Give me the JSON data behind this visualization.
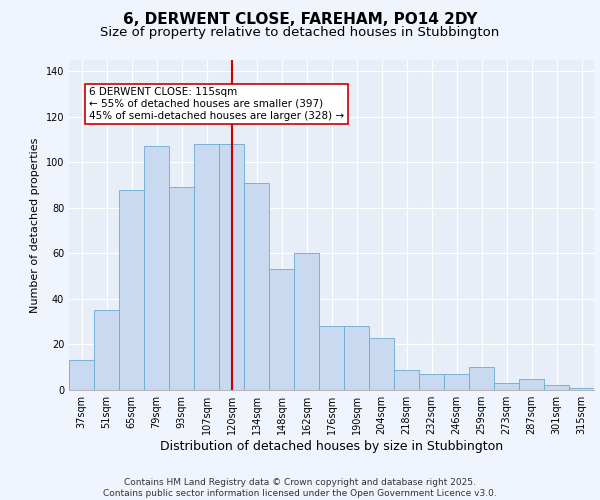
{
  "title": "6, DERWENT CLOSE, FAREHAM, PO14 2DY",
  "subtitle": "Size of property relative to detached houses in Stubbington",
  "xlabel": "Distribution of detached houses by size in Stubbington",
  "ylabel": "Number of detached properties",
  "categories": [
    "37sqm",
    "51sqm",
    "65sqm",
    "79sqm",
    "93sqm",
    "107sqm",
    "120sqm",
    "134sqm",
    "148sqm",
    "162sqm",
    "176sqm",
    "190sqm",
    "204sqm",
    "218sqm",
    "232sqm",
    "246sqm",
    "259sqm",
    "273sqm",
    "287sqm",
    "301sqm",
    "315sqm"
  ],
  "values": [
    13,
    35,
    88,
    107,
    89,
    108,
    108,
    91,
    53,
    60,
    28,
    28,
    23,
    9,
    7,
    7,
    10,
    3,
    5,
    2,
    1
  ],
  "bar_color": "#c8d9f0",
  "bar_edge_color": "#6aaad4",
  "vline_x_index": 6,
  "vline_color": "#cc0000",
  "annotation_text": "6 DERWENT CLOSE: 115sqm\n← 55% of detached houses are smaller (397)\n45% of semi-detached houses are larger (328) →",
  "annotation_box_color": "#ffffff",
  "annotation_box_edge": "#cc0000",
  "ylim": [
    0,
    145
  ],
  "yticks": [
    0,
    20,
    40,
    60,
    80,
    100,
    120,
    140
  ],
  "footer": "Contains HM Land Registry data © Crown copyright and database right 2025.\nContains public sector information licensed under the Open Government Licence v3.0.",
  "bg_color": "#e8eef8",
  "grid_color": "#ffffff",
  "fig_bg_color": "#f0f4fc",
  "title_fontsize": 11,
  "subtitle_fontsize": 9.5,
  "xlabel_fontsize": 9,
  "ylabel_fontsize": 8,
  "tick_fontsize": 7,
  "footer_fontsize": 6.5,
  "annotation_fontsize": 7.5
}
